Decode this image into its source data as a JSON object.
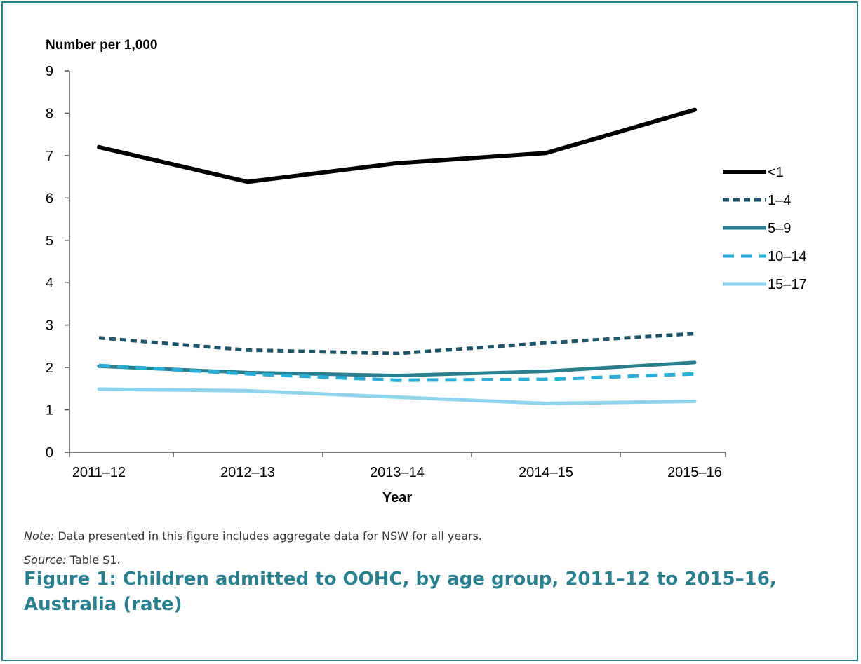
{
  "chart_data": {
    "type": "line",
    "ylabel": "Number per 1,000",
    "xlabel": "Year",
    "ylim": [
      0,
      9
    ],
    "yticks": [
      "0",
      "1",
      "2",
      "3",
      "4",
      "5",
      "6",
      "7",
      "8",
      "9"
    ],
    "categories": [
      "2011–12",
      "2012–13",
      "2013–14",
      "2014–15",
      "2015–16"
    ],
    "legend_position": "right",
    "series": [
      {
        "name": "<1",
        "values": [
          7.2,
          6.38,
          6.82,
          7.06,
          8.08
        ],
        "color": "#000000",
        "dash": "solid",
        "width": 6
      },
      {
        "name": "1–4",
        "values": [
          2.7,
          2.41,
          2.33,
          2.58,
          2.8
        ],
        "color": "#1d5466",
        "dash": "dotted",
        "width": 5
      },
      {
        "name": "5–9",
        "values": [
          2.03,
          1.88,
          1.81,
          1.91,
          2.12
        ],
        "color": "#2a7f8e",
        "dash": "solid",
        "width": 5
      },
      {
        "name": "10–14",
        "values": [
          2.05,
          1.85,
          1.7,
          1.72,
          1.85
        ],
        "color": "#29aed6",
        "dash": "dashed",
        "width": 5
      },
      {
        "name": "15–17",
        "values": [
          1.49,
          1.45,
          1.3,
          1.15,
          1.2
        ],
        "color": "#8fd3ec",
        "dash": "solid",
        "width": 5
      }
    ]
  },
  "note": {
    "label": "Note:",
    "text": " Data presented in this figure includes aggregate data for NSW for all years."
  },
  "source": {
    "label": "Source:",
    "text": " Table S1."
  },
  "caption": "Figure 1: Children admitted to OOHC, by age group, 2011–12 to 2015–16, Australia (rate)"
}
